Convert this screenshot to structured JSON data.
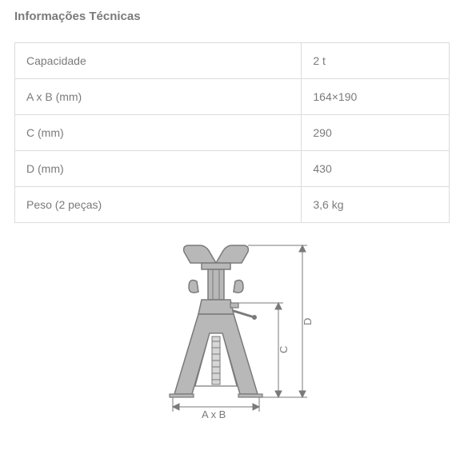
{
  "title": "Informações Técnicas",
  "table": {
    "rows": [
      {
        "label": "Capacidade",
        "value": "2 t"
      },
      {
        "label": "A x B (mm)",
        "value": "164×190"
      },
      {
        "label": "C (mm)",
        "value": "290"
      },
      {
        "label": "D (mm)",
        "value": "430"
      },
      {
        "label": "Peso (2 peças)",
        "value": "3,6 kg"
      }
    ],
    "border_color": "#dcdcdc",
    "text_color": "#7a7a7a",
    "label_fontsize": 14
  },
  "diagram": {
    "type": "infographic",
    "labels": {
      "bottom": "A x B",
      "inner_right": "C",
      "outer_right": "D"
    },
    "label_fontsize": 12,
    "stroke_color": "#7a7a7a",
    "fill_color": "#b8b8b8",
    "dim_line_color": "#7a7a7a",
    "background_color": "#ffffff"
  }
}
